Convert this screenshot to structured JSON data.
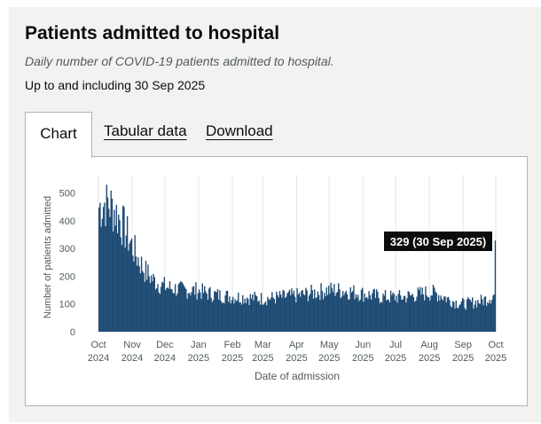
{
  "card": {
    "title": "Patients admitted to hospital",
    "subtitle": "Daily number of COVID-19 patients admitted to hospital.",
    "updated": "Up to and including 30 Sep 2025"
  },
  "tabs": [
    {
      "label": "Chart",
      "active": true
    },
    {
      "label": "Tabular data",
      "active": false
    },
    {
      "label": "Download",
      "active": false
    }
  ],
  "colors": {
    "bar": "#1d4a73",
    "tooltip_bg": "#0b0c0c",
    "card_bg": "#f3f2f1"
  },
  "chart_data": {
    "type": "bar",
    "ylabel": "Number of patients admitted",
    "xlabel": "Date of admission",
    "ylim": [
      0,
      550
    ],
    "yticks": [
      0,
      100,
      200,
      300,
      400,
      500
    ],
    "x_range": [
      "2024-10-01",
      "2025-09-30"
    ],
    "xticks": [
      {
        "line1": "Oct",
        "line2": "2024",
        "date": "2024-10-01"
      },
      {
        "line1": "Nov",
        "line2": "2024",
        "date": "2024-11-01"
      },
      {
        "line1": "Dec",
        "line2": "2024",
        "date": "2024-12-01"
      },
      {
        "line1": "Jan",
        "line2": "2025",
        "date": "2025-01-01"
      },
      {
        "line1": "Feb",
        "line2": "2025",
        "date": "2025-02-01"
      },
      {
        "line1": "Mar",
        "line2": "2025",
        "date": "2025-03-01"
      },
      {
        "line1": "Apr",
        "line2": "2025",
        "date": "2025-04-01"
      },
      {
        "line1": "May",
        "line2": "2025",
        "date": "2025-05-01"
      },
      {
        "line1": "Jun",
        "line2": "2025",
        "date": "2025-06-01"
      },
      {
        "line1": "Jul",
        "line2": "2025",
        "date": "2025-07-01"
      },
      {
        "line1": "Aug",
        "line2": "2025",
        "date": "2025-08-01"
      },
      {
        "line1": "Sep",
        "line2": "2025",
        "date": "2025-09-01"
      },
      {
        "line1": "Oct",
        "line2": "2025",
        "date": "2025-10-01"
      }
    ],
    "series": [
      {
        "approx_weekly_values": [
          450,
          470,
          440,
          390,
          330,
          270,
          220,
          190,
          170,
          160,
          155,
          150,
          150,
          148,
          140,
          135,
          130,
          128,
          125,
          125,
          122,
          120,
          120,
          122,
          125,
          128,
          130,
          135,
          140,
          145,
          150,
          150,
          148,
          145,
          140,
          135,
          130,
          125,
          125,
          125,
          125,
          130,
          135,
          140,
          140,
          130,
          115,
          105,
          100,
          105,
          110,
          120,
          135,
          150,
          160,
          165,
          175,
          200,
          250,
          280,
          315,
          329
        ]
      }
    ],
    "tooltip": "329 (30 Sep 2025)",
    "last_value": 329,
    "grid": "vertical"
  }
}
